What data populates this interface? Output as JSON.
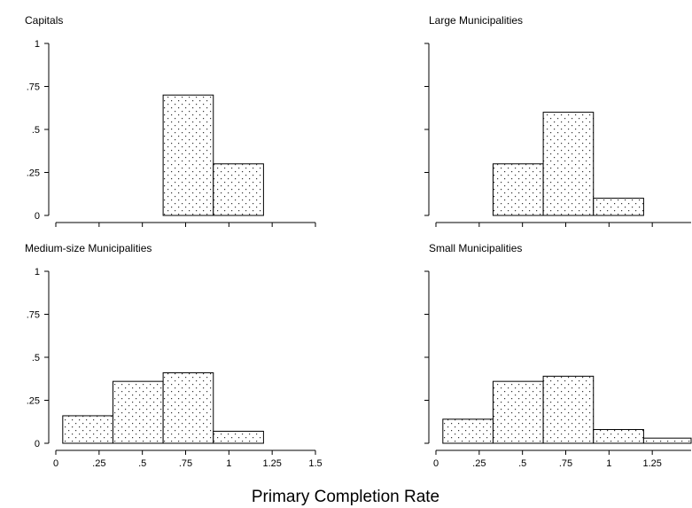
{
  "figure": {
    "xlabel": "Primary Completion Rate"
  },
  "chart_data": [
    {
      "type": "bar",
      "title": "Capitals",
      "bin_width": 0.29,
      "bin_starts": [
        0.62,
        0.91
      ],
      "values": [
        0.7,
        0.3
      ],
      "xlim": [
        0,
        1.5
      ],
      "ylim": [
        0,
        1
      ],
      "xticks": [
        0,
        0.25,
        0.5,
        0.75,
        1,
        1.25,
        1.5
      ],
      "xtick_labels": [],
      "yticks": [
        0,
        0.25,
        0.5,
        0.75,
        1
      ],
      "ytick_labels": [
        "0",
        ".25",
        ".5",
        ".75",
        "1"
      ]
    },
    {
      "type": "bar",
      "title": "Large Municipalities",
      "bin_width": 0.29,
      "bin_starts": [
        0.33,
        0.62,
        0.91
      ],
      "values": [
        0.3,
        0.6,
        0.1
      ],
      "xlim": [
        0,
        1.5
      ],
      "ylim": [
        0,
        1
      ],
      "xticks": [
        0,
        0.25,
        0.5,
        0.75,
        1,
        1.25,
        1.5
      ],
      "xtick_labels": [],
      "yticks": [
        0,
        0.25,
        0.5,
        0.75,
        1
      ],
      "ytick_labels": []
    },
    {
      "type": "bar",
      "title": "Medium-size Municipalities",
      "bin_width": 0.29,
      "bin_starts": [
        0.04,
        0.33,
        0.62,
        0.91
      ],
      "values": [
        0.16,
        0.36,
        0.41,
        0.07
      ],
      "xlim": [
        0,
        1.5
      ],
      "ylim": [
        0,
        1
      ],
      "xticks": [
        0,
        0.25,
        0.5,
        0.75,
        1,
        1.25,
        1.5
      ],
      "xtick_labels": [
        "0",
        ".25",
        ".5",
        ".75",
        "1",
        "1.25",
        "1.5"
      ],
      "yticks": [
        0,
        0.25,
        0.5,
        0.75,
        1
      ],
      "ytick_labels": [
        "0",
        ".25",
        ".5",
        ".75",
        "1"
      ]
    },
    {
      "type": "bar",
      "title": "Small Municipalities",
      "bin_width": 0.29,
      "bin_starts": [
        0.04,
        0.33,
        0.62,
        0.91,
        1.2
      ],
      "values": [
        0.14,
        0.36,
        0.39,
        0.08,
        0.03
      ],
      "xlim": [
        0,
        1.5
      ],
      "ylim": [
        0,
        1
      ],
      "xticks": [
        0,
        0.25,
        0.5,
        0.75,
        1,
        1.25,
        1.5
      ],
      "xtick_labels": [
        "0",
        ".25",
        ".5",
        ".75",
        "1",
        "1.25",
        "1.5"
      ],
      "yticks": [
        0,
        0.25,
        0.5,
        0.75,
        1
      ],
      "ytick_labels": []
    }
  ]
}
